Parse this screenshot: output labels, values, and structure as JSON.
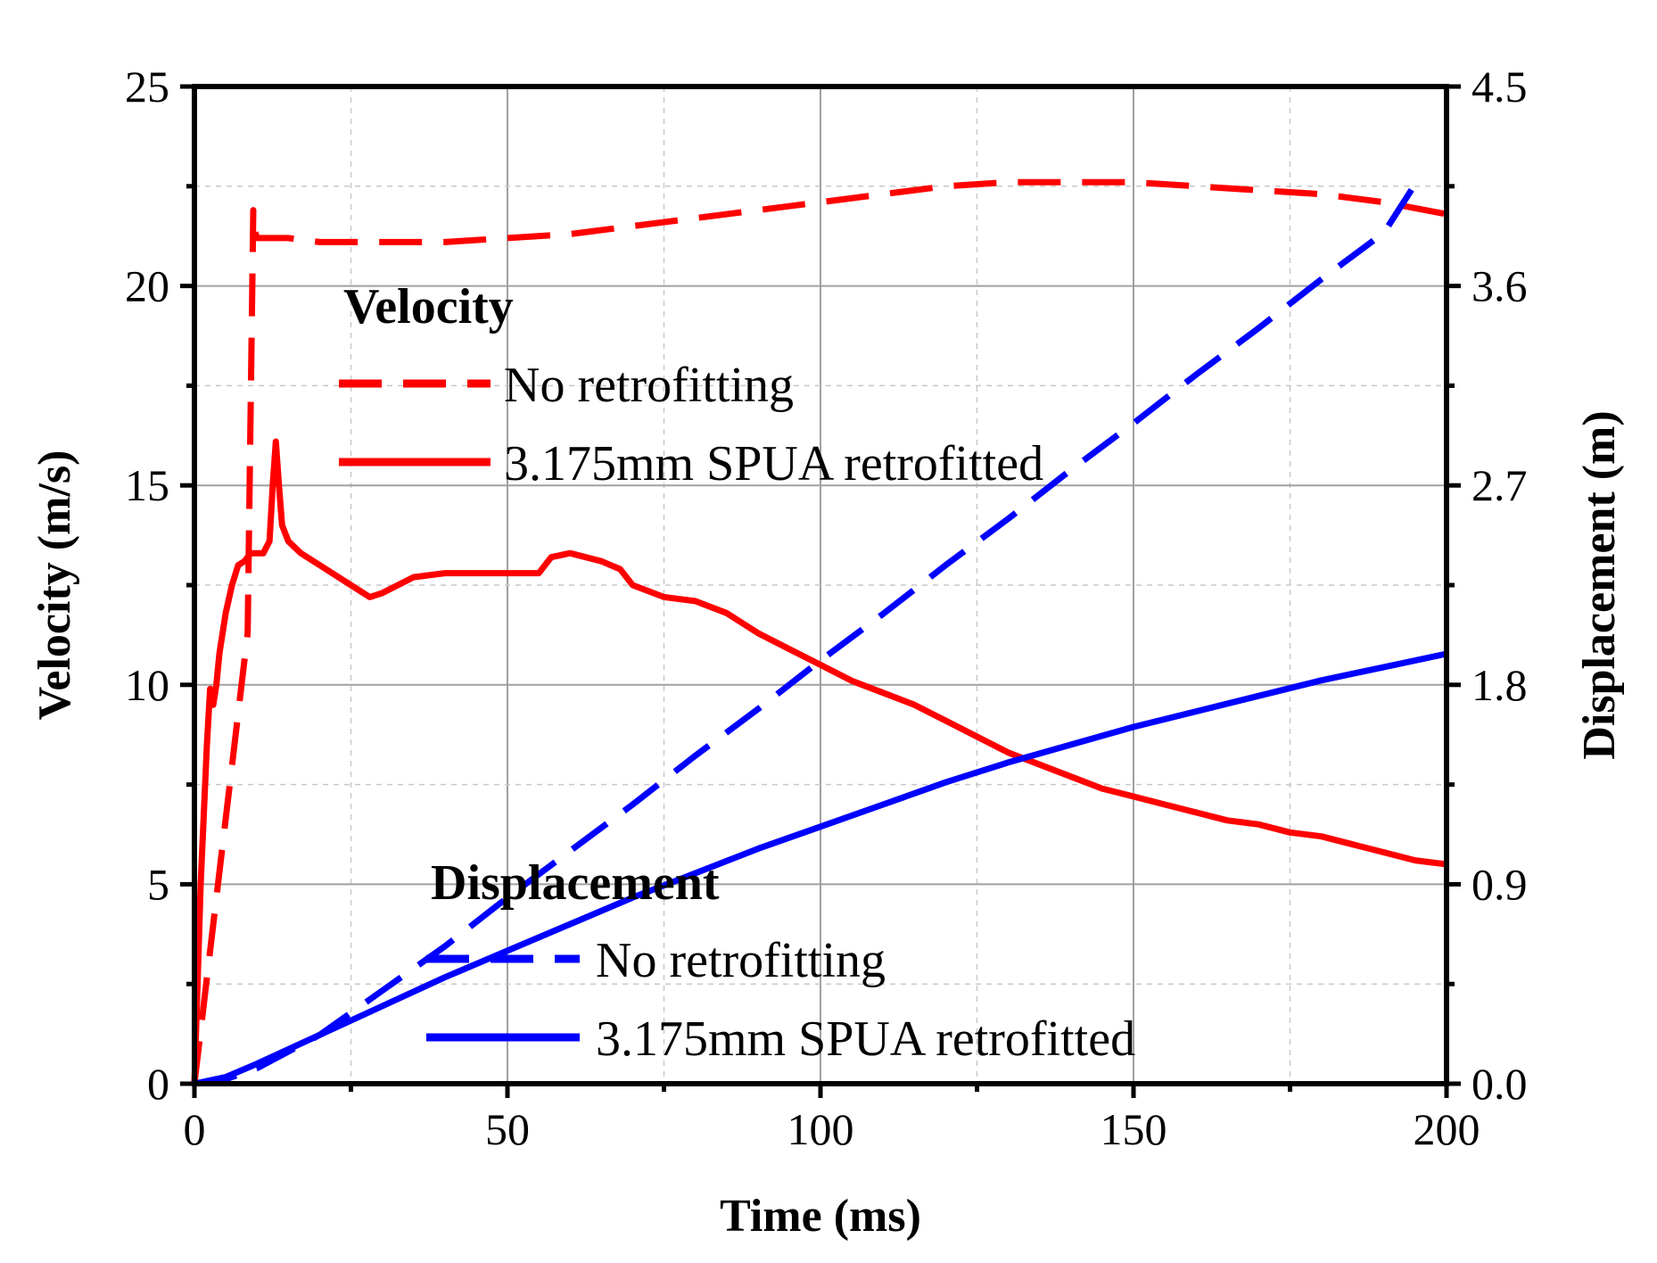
{
  "chart_data": {
    "type": "line",
    "xlabel": "Time (ms)",
    "ylabel": "Velocity (m/s)",
    "y2label": "Displacement (m)",
    "xlim": [
      0,
      200
    ],
    "ylim": [
      0,
      25
    ],
    "y2lim": [
      0,
      4.5
    ],
    "x_ticks": [
      "0",
      "50",
      "100",
      "150",
      "200"
    ],
    "y_ticks": [
      "0",
      "5",
      "10",
      "15",
      "20",
      "25"
    ],
    "y2_ticks": [
      "0.0",
      "0.9",
      "1.8",
      "2.7",
      "3.6",
      "4.5"
    ],
    "grid": true,
    "legend_groups": [
      {
        "title": "Velocity",
        "entries": [
          "No retrofitting",
          "3.175mm SPUA retrofitted"
        ]
      },
      {
        "title": "Displacement",
        "entries": [
          "No retrofitting",
          "3.175mm SPUA retrofitted"
        ]
      }
    ],
    "series": [
      {
        "name": "No retrofitting",
        "group": "Velocity",
        "axis": "left",
        "color": "#ff0000",
        "dash": "dashed",
        "x": [
          0,
          8.5,
          8.9,
          9.2,
          9.4,
          9.6,
          10,
          15,
          20,
          30,
          40,
          50,
          60,
          70,
          80,
          90,
          100,
          110,
          120,
          130,
          140,
          150,
          160,
          170,
          180,
          190,
          200
        ],
        "y": [
          0,
          11.3,
          16,
          19.5,
          21.9,
          21.4,
          21.2,
          21.2,
          21.1,
          21.1,
          21.1,
          21.2,
          21.3,
          21.5,
          21.7,
          21.9,
          22.1,
          22.3,
          22.5,
          22.6,
          22.6,
          22.6,
          22.5,
          22.4,
          22.3,
          22.1,
          21.8
        ]
      },
      {
        "name": "3.175mm SPUA retrofitted",
        "group": "Velocity",
        "axis": "left",
        "color": "#ff0000",
        "dash": "solid",
        "x": [
          0,
          1,
          2,
          2.5,
          3,
          3.5,
          4,
          5,
          6,
          7,
          8,
          9,
          10,
          11,
          12,
          12.5,
          13,
          13.5,
          14,
          15,
          17,
          20,
          25,
          28,
          30,
          35,
          40,
          45,
          50,
          55,
          57,
          60,
          65,
          68,
          70,
          75,
          80,
          85,
          90,
          95,
          100,
          105,
          110,
          115,
          120,
          125,
          130,
          135,
          140,
          145,
          150,
          155,
          160,
          165,
          170,
          175,
          180,
          185,
          190,
          195,
          200
        ],
        "y": [
          0,
          5,
          8.5,
          9.9,
          9.5,
          10,
          10.8,
          11.8,
          12.5,
          13,
          13.1,
          13.3,
          13.3,
          13.3,
          13.6,
          15,
          16.1,
          15,
          14,
          13.6,
          13.3,
          13,
          12.5,
          12.2,
          12.3,
          12.7,
          12.8,
          12.8,
          12.8,
          12.8,
          13.2,
          13.3,
          13.1,
          12.9,
          12.5,
          12.2,
          12.1,
          11.8,
          11.3,
          10.9,
          10.5,
          10.1,
          9.8,
          9.5,
          9.1,
          8.7,
          8.3,
          8,
          7.7,
          7.4,
          7.2,
          7,
          6.8,
          6.6,
          6.5,
          6.3,
          6.2,
          6,
          5.8,
          5.6,
          5.5
        ]
      },
      {
        "name": "No retrofitting",
        "group": "Displacement",
        "axis": "right",
        "color": "#0000ff",
        "dash": "dashed",
        "x": [
          0,
          5,
          10,
          20,
          30,
          40,
          50,
          60,
          70,
          80,
          90,
          100,
          110,
          120,
          130,
          140,
          150,
          160,
          170,
          180,
          190,
          195
        ],
        "y": [
          0,
          0.02,
          0.07,
          0.22,
          0.42,
          0.62,
          0.84,
          1.05,
          1.26,
          1.48,
          1.69,
          1.91,
          2.12,
          2.34,
          2.55,
          2.77,
          2.98,
          3.2,
          3.41,
          3.63,
          3.84,
          4.06
        ]
      },
      {
        "name": "3.175mm SPUA retrofitted",
        "group": "Displacement",
        "axis": "right",
        "color": "#0000ff",
        "dash": "solid",
        "x": [
          0,
          5,
          10,
          20,
          30,
          40,
          50,
          60,
          70,
          80,
          90,
          100,
          110,
          120,
          130,
          140,
          150,
          160,
          170,
          180,
          190,
          200
        ],
        "y": [
          0,
          0.03,
          0.09,
          0.22,
          0.35,
          0.48,
          0.6,
          0.72,
          0.84,
          0.95,
          1.06,
          1.16,
          1.26,
          1.36,
          1.45,
          1.53,
          1.61,
          1.68,
          1.75,
          1.82,
          1.88,
          1.94
        ]
      }
    ]
  }
}
